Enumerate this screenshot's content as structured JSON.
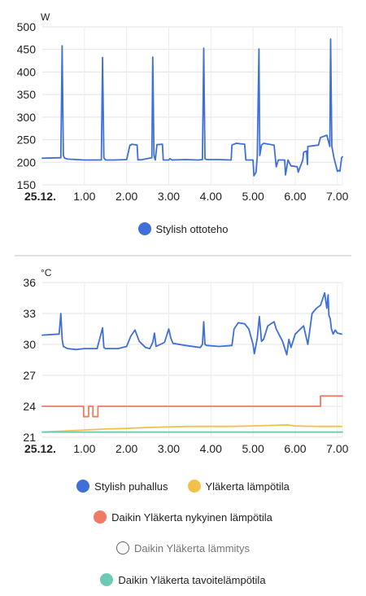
{
  "chart_data": [
    {
      "type": "line",
      "unit": "W",
      "ylim": [
        150,
        500
      ],
      "yticks": [
        150,
        200,
        250,
        300,
        350,
        400,
        450,
        500
      ],
      "xticks": [
        "25.12.",
        "1.00",
        "2.00",
        "3.00",
        "4.00",
        "5.00",
        "6.00",
        "7.00"
      ],
      "xlim": [
        0,
        7.12
      ],
      "grid": true,
      "legend": "bottom",
      "series": [
        {
          "name": "Stylish ottoteho",
          "color": "#3f6fd8",
          "x": [
            0,
            0.44,
            0.47,
            0.5,
            0.53,
            0.6,
            1.0,
            1.4,
            1.43,
            1.46,
            1.5,
            1.7,
            2.0,
            2.08,
            2.1,
            2.12,
            2.25,
            2.27,
            2.3,
            2.32,
            2.6,
            2.62,
            2.65,
            2.68,
            2.72,
            2.85,
            2.87,
            3.0,
            3.03,
            3.08,
            3.4,
            3.7,
            3.8,
            3.83,
            3.86,
            3.9,
            4.2,
            4.48,
            4.5,
            4.55,
            4.6,
            4.8,
            4.83,
            5.0,
            5.02,
            5.07,
            5.1,
            5.14,
            5.16,
            5.2,
            5.25,
            5.5,
            5.55,
            5.6,
            5.75,
            5.77,
            5.83,
            5.9,
            6.05,
            6.07,
            6.18,
            6.2,
            6.27,
            6.29,
            6.3,
            6.55,
            6.6,
            6.7,
            6.75,
            6.82,
            6.84,
            6.87,
            6.92,
            7.0,
            7.03,
            7.06,
            7.1,
            7.12
          ],
          "values": [
            209,
            210,
            458,
            215,
            209,
            207,
            205,
            205,
            432,
            210,
            205,
            205,
            206,
            238,
            238,
            240,
            238,
            205,
            206,
            205,
            210,
            433,
            215,
            205,
            239,
            240,
            205,
            205,
            208,
            205,
            206,
            205,
            206,
            453,
            208,
            206,
            206,
            205,
            238,
            240,
            242,
            240,
            205,
            205,
            170,
            178,
            212,
            451,
            215,
            238,
            242,
            238,
            190,
            205,
            205,
            172,
            205,
            192,
            190,
            178,
            205,
            222,
            225,
            195,
            235,
            238,
            255,
            258,
            260,
            235,
            473,
            235,
            210,
            180,
            182,
            180,
            210,
            212
          ]
        }
      ]
    },
    {
      "type": "line",
      "unit": "°C",
      "ylim": [
        21,
        36
      ],
      "yticks": [
        21,
        24,
        27,
        30,
        33,
        36
      ],
      "xticks": [
        "25.12.",
        "1.00",
        "2.00",
        "3.00",
        "4.00",
        "5.00",
        "6.00",
        "7.00"
      ],
      "xlim": [
        0,
        7.12
      ],
      "grid": true,
      "legend": "bottom",
      "series": [
        {
          "name": "Stylish puhallus",
          "color": "#3f6fd8",
          "x": [
            0,
            0.4,
            0.44,
            0.47,
            0.5,
            0.6,
            0.8,
            1.0,
            1.3,
            1.43,
            1.46,
            1.5,
            1.8,
            2.0,
            2.1,
            2.2,
            2.3,
            2.45,
            2.55,
            2.62,
            2.66,
            2.7,
            2.9,
            3.0,
            3.05,
            3.1,
            3.4,
            3.75,
            3.8,
            3.83,
            3.86,
            3.9,
            4.2,
            4.5,
            4.55,
            4.65,
            4.8,
            4.9,
            5.0,
            5.03,
            5.1,
            5.15,
            5.2,
            5.25,
            5.35,
            5.5,
            5.55,
            5.7,
            5.8,
            5.85,
            5.9,
            6.0,
            6.2,
            6.3,
            6.4,
            6.5,
            6.6,
            6.7,
            6.75,
            6.78,
            6.8,
            6.83,
            6.86,
            6.9,
            6.95,
            7.0,
            7.1
          ],
          "values": [
            30.9,
            31.0,
            33.0,
            30.5,
            29.8,
            29.6,
            29.5,
            29.6,
            29.6,
            31.6,
            29.7,
            29.6,
            29.6,
            29.8,
            30.8,
            31.4,
            30.3,
            29.7,
            29.6,
            30.2,
            31.1,
            29.8,
            30.2,
            31.5,
            30.6,
            30.1,
            29.9,
            29.7,
            30.0,
            32.2,
            30.0,
            29.9,
            29.8,
            29.9,
            31.5,
            32.1,
            32.0,
            31.5,
            30.0,
            29.1,
            30.6,
            32.7,
            30.3,
            30.5,
            31.8,
            32.2,
            31.5,
            30.3,
            29.0,
            30.5,
            29.7,
            31.0,
            31.8,
            30.0,
            33.0,
            33.5,
            33.8,
            35.0,
            33.5,
            34.8,
            32.8,
            32.5,
            31.5,
            31.0,
            31.4,
            31.1,
            31.0
          ]
        },
        {
          "name": "Yläkerta lämpötila",
          "color": "#f2c14b",
          "x": [
            0,
            0.5,
            1.0,
            1.5,
            2.0,
            2.5,
            3.0,
            3.5,
            4.0,
            4.5,
            5.0,
            5.5,
            5.8,
            6.0,
            6.5,
            7.1
          ],
          "values": [
            21.5,
            21.6,
            21.7,
            21.8,
            21.85,
            21.95,
            22.0,
            22.05,
            22.05,
            22.05,
            22.1,
            22.15,
            22.2,
            22.1,
            22.05,
            22.05
          ]
        },
        {
          "name": "Daikin Yläkerta nykyinen lämpötila",
          "color": "#f07b63",
          "x": [
            0,
            0.98,
            0.98,
            1.1,
            1.1,
            1.2,
            1.2,
            1.32,
            1.32,
            6.6,
            6.6,
            7.12
          ],
          "values": [
            24,
            24,
            23,
            23,
            24,
            24,
            23,
            23,
            24,
            24,
            25,
            25
          ]
        },
        {
          "name": "Daikin Yläkerta lämmitys",
          "color": "#616161",
          "hidden": true,
          "x": [],
          "values": []
        },
        {
          "name": "Daikin Yläkerta tavoitelämpötila",
          "color": "#6ccab4",
          "x": [
            0,
            7.12
          ],
          "values": [
            21.5,
            21.5
          ]
        }
      ]
    }
  ],
  "legend1": [
    {
      "label": "Stylish ottoteho",
      "color": "#3f6fd8"
    }
  ],
  "legend2_rows": [
    [
      {
        "label": "Stylish puhallus",
        "color": "#3f6fd8"
      },
      {
        "label": "Yläkerta lämpötila",
        "color": "#f2c14b"
      }
    ],
    [
      {
        "label": "Daikin Yläkerta nykyinen lämpötila",
        "color": "#f07b63"
      }
    ],
    [
      {
        "label": "Daikin Yläkerta lämmitys",
        "color": "#616161",
        "hollow": true
      }
    ],
    [
      {
        "label": "Daikin Yläkerta tavoitelämpötila",
        "color": "#6ccab4"
      }
    ]
  ]
}
